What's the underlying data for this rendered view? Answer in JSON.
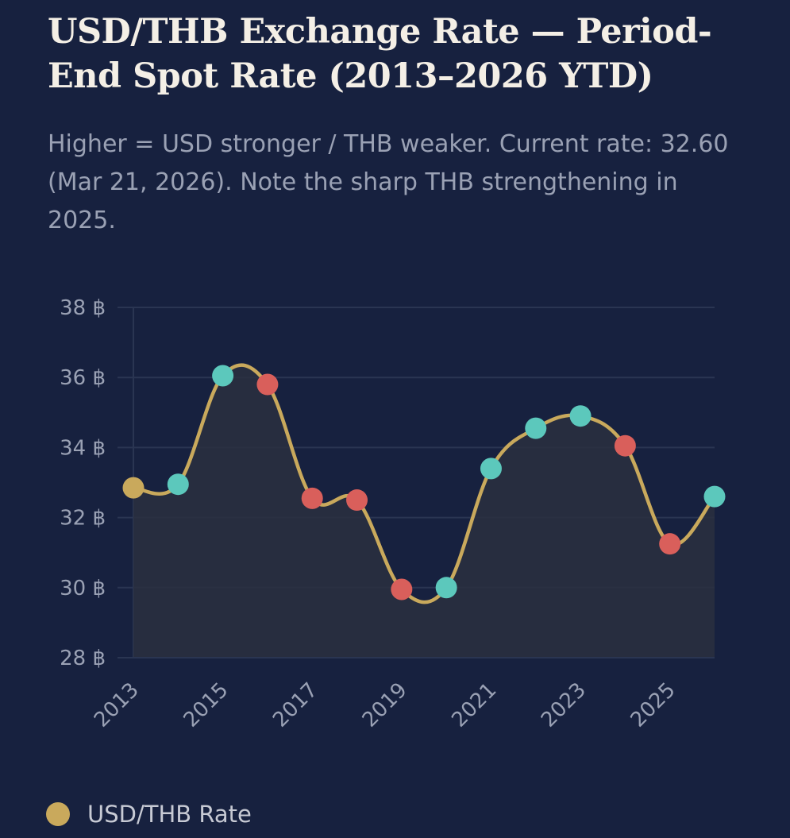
{
  "title": "USD/THB Exchange Rate — Period-End Spot Rate (2013–2026 YTD)",
  "subtitle": "Higher = USD stronger / THB weaker. Current rate: 32.60 (Mar 21, 2026). Note the sharp THB strengthening in 2025.",
  "colors": {
    "background": "#17213f",
    "line": "#c9a95c",
    "up": "#5cc8bc",
    "down": "#d95f5b",
    "neutral": "#c9a95c",
    "grid": "#2a3552",
    "fill": "#2a2f40"
  },
  "chart_data": {
    "type": "line",
    "title": "USD/THB Exchange Rate — Period-End Spot Rate (2013–2026 YTD)",
    "xlabel": "",
    "ylabel": "",
    "x": [
      2013,
      2014,
      2015,
      2016,
      2017,
      2018,
      2019,
      2020,
      2021,
      2022,
      2023,
      2024,
      2025,
      2026
    ],
    "x_tick_labels": [
      "2013",
      "2015",
      "2017",
      "2019",
      "2021",
      "2023",
      "2025"
    ],
    "y_ticks": [
      28,
      30,
      32,
      34,
      36,
      38
    ],
    "y_tick_suffix": " ฿",
    "ylim": [
      28,
      38
    ],
    "series": [
      {
        "name": "USD/THB Rate",
        "values": [
          32.85,
          32.95,
          36.05,
          35.8,
          32.55,
          32.5,
          29.95,
          30.0,
          33.4,
          34.55,
          34.9,
          34.05,
          31.25,
          32.6
        ],
        "point_colors": [
          "neutral",
          "up",
          "up",
          "down",
          "down",
          "down",
          "down",
          "up",
          "up",
          "up",
          "up",
          "down",
          "down",
          "up"
        ]
      }
    ],
    "legend": "bottom-left"
  },
  "legend": {
    "label": "USD/THB Rate"
  }
}
